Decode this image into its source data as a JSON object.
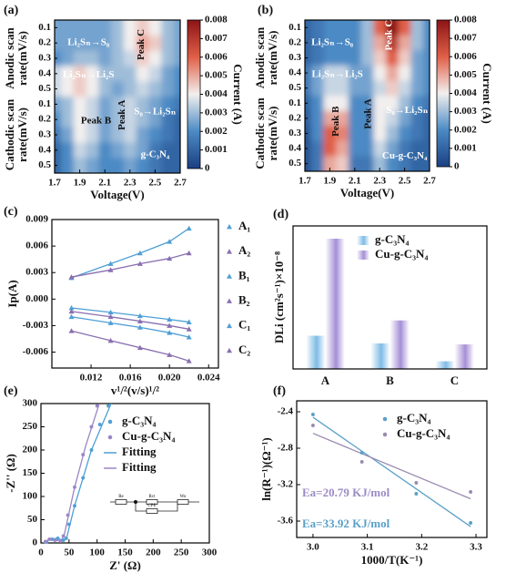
{
  "chart_data": [
    {
      "type": "heatmap",
      "label": "(a)",
      "xlabel": "Voltage(V)",
      "ylabel_top": [
        "Anodic scan",
        "rate(mV/s)"
      ],
      "ylabel_bottom": [
        "Cathodic scan",
        "rate(mV/s)"
      ],
      "colorbar_label": "Current (A)",
      "x": [
        1.7,
        1.8,
        1.9,
        2.0,
        2.1,
        2.2,
        2.3,
        2.4,
        2.5,
        2.6,
        2.7
      ],
      "xlim": [
        1.7,
        2.7
      ],
      "xticks": [
        1.7,
        1.9,
        2.1,
        2.3,
        2.5,
        2.7
      ],
      "categories": [
        "0.1",
        "0.2",
        "0.3",
        "0.4",
        "0.5",
        "0.1",
        "0.2",
        "0.3",
        "0.4",
        "0.5"
      ],
      "z": [
        [
          0.0025,
          0.0025,
          0.0025,
          0.0025,
          0.0025,
          0.003,
          0.004,
          0.0045,
          0.004,
          0.003,
          0.0025
        ],
        [
          0.0025,
          0.0025,
          0.0025,
          0.0025,
          0.0025,
          0.003,
          0.004,
          0.005,
          0.0045,
          0.003,
          0.0025
        ],
        [
          0.002,
          0.0025,
          0.003,
          0.003,
          0.0025,
          0.003,
          0.0035,
          0.0045,
          0.004,
          0.003,
          0.0025
        ],
        [
          0.0035,
          0.004,
          0.0045,
          0.004,
          0.003,
          0.003,
          0.003,
          0.004,
          0.0035,
          0.0025,
          0.002
        ],
        [
          0.0035,
          0.004,
          0.0045,
          0.004,
          0.003,
          0.0025,
          0.003,
          0.0035,
          0.003,
          0.0025,
          0.002
        ],
        [
          0.0025,
          0.003,
          0.004,
          0.0035,
          0.0025,
          0.003,
          0.0035,
          0.003,
          0.0025,
          0.002,
          0.0015
        ],
        [
          0.002,
          0.003,
          0.004,
          0.0035,
          0.0025,
          0.003,
          0.0035,
          0.003,
          0.0025,
          0.0015,
          0.001
        ],
        [
          0.0015,
          0.0025,
          0.004,
          0.0035,
          0.0025,
          0.003,
          0.0035,
          0.0025,
          0.002,
          0.0015,
          0.001
        ],
        [
          0.001,
          0.002,
          0.0035,
          0.003,
          0.002,
          0.0025,
          0.003,
          0.0025,
          0.0015,
          0.001,
          0.001
        ],
        [
          0.001,
          0.002,
          0.003,
          0.0025,
          0.002,
          0.002,
          0.0025,
          0.002,
          0.0015,
          0.001,
          0.001
        ]
      ],
      "clim": [
        0,
        0.008
      ],
      "cticks": [
        0,
        0.001,
        0.002,
        0.003,
        0.004,
        0.005,
        0.006,
        0.007,
        0.008
      ],
      "colorscale": [
        "#1b3f82",
        "#4b8ac4",
        "#f2efee",
        "#e05f47",
        "#8c1416"
      ],
      "annotations": [
        "Li₂Sₙ→S₈",
        "Li₂Sₙ→Li₂S",
        "Peak C",
        "Peak B",
        "Peak A",
        "S₈→Li₂Sₙ",
        "g-C₃N₄"
      ]
    },
    {
      "type": "heatmap",
      "label": "(b)",
      "xlabel": "Voltage(V)",
      "ylabel_top": [
        "Anodic scan",
        "rate(mV/s)"
      ],
      "ylabel_bottom": [
        "Cathodic scan",
        "rate(mV/s)"
      ],
      "colorbar_label": "Current (A)",
      "x": [
        1.7,
        1.8,
        1.9,
        2.0,
        2.1,
        2.2,
        2.3,
        2.4,
        2.5,
        2.6,
        2.7
      ],
      "xlim": [
        1.7,
        2.7
      ],
      "xticks": [
        1.7,
        1.9,
        2.1,
        2.3,
        2.5,
        2.7
      ],
      "categories": [
        "0.1",
        "0.2",
        "0.3",
        "0.4",
        "0.5",
        "0.1",
        "0.2",
        "0.3",
        "0.4",
        "0.5"
      ],
      "z": [
        [
          0.001,
          0.0015,
          0.002,
          0.002,
          0.002,
          0.003,
          0.006,
          0.008,
          0.006,
          0.003,
          0.002
        ],
        [
          0.001,
          0.0015,
          0.002,
          0.002,
          0.002,
          0.003,
          0.005,
          0.007,
          0.005,
          0.003,
          0.002
        ],
        [
          0.001,
          0.0015,
          0.002,
          0.002,
          0.002,
          0.003,
          0.0045,
          0.006,
          0.0045,
          0.0025,
          0.002
        ],
        [
          0.0015,
          0.0025,
          0.0035,
          0.0035,
          0.0025,
          0.0025,
          0.004,
          0.005,
          0.004,
          0.0025,
          0.002
        ],
        [
          0.0015,
          0.0025,
          0.0035,
          0.0035,
          0.0025,
          0.0025,
          0.0035,
          0.0045,
          0.0035,
          0.0025,
          0.002
        ],
        [
          0.001,
          0.002,
          0.004,
          0.004,
          0.002,
          0.002,
          0.004,
          0.004,
          0.003,
          0.002,
          0.0015
        ],
        [
          0.0008,
          0.002,
          0.005,
          0.005,
          0.002,
          0.002,
          0.004,
          0.0035,
          0.0025,
          0.0015,
          0.001
        ],
        [
          0.0005,
          0.002,
          0.006,
          0.0055,
          0.002,
          0.002,
          0.004,
          0.003,
          0.002,
          0.0015,
          0.001
        ],
        [
          0.0005,
          0.0015,
          0.006,
          0.005,
          0.002,
          0.002,
          0.0035,
          0.0025,
          0.0015,
          0.001,
          0.001
        ],
        [
          0.0005,
          0.0015,
          0.005,
          0.0045,
          0.0015,
          0.0015,
          0.003,
          0.002,
          0.0015,
          0.001,
          0.001
        ]
      ],
      "clim": [
        0,
        0.008
      ],
      "cticks": [
        0,
        0.001,
        0.002,
        0.003,
        0.004,
        0.005,
        0.006,
        0.007,
        0.008
      ],
      "colorscale": [
        "#1b3f82",
        "#4b8ac4",
        "#f2efee",
        "#e05f47",
        "#8c1416"
      ],
      "annotations": [
        "Li₂Sₙ→S₈",
        "Li₂Sₙ→Li₂S",
        "Peak C",
        "Peak B",
        "Peak A",
        "S₈→Li₂Sₙ",
        "Cu-g-C₃N₄"
      ]
    },
    {
      "type": "line",
      "label": "(c)",
      "xlabel": "v¹/²(v/s)¹/²",
      "ylabel": "Ip(A)",
      "x": [
        0.01,
        0.014,
        0.017,
        0.02,
        0.022
      ],
      "xlim": [
        0.008,
        0.025
      ],
      "xticks": [
        0.012,
        0.016,
        {
          "value": 0.02,
          "label": "0.020"
        },
        0.024
      ],
      "ylim": [
        -0.0078,
        0.009
      ],
      "yticks": [
        -0.006,
        -0.003,
        {
          "value": 0,
          "label": "0.000"
        },
        0.003,
        0.006,
        0.009
      ],
      "legend": "right",
      "series": [
        {
          "name": "A₁",
          "color": "#4f9fd6",
          "values": [
            0.0024,
            0.004,
            0.0052,
            0.0065,
            0.008
          ]
        },
        {
          "name": "A₂",
          "color": "#8a6fb0",
          "values": [
            0.0025,
            0.0033,
            0.004,
            0.0046,
            0.0052
          ]
        },
        {
          "name": "B₁",
          "color": "#4f9fd6",
          "values": [
            -0.001,
            -0.0015,
            -0.0019,
            -0.0023,
            -0.0026
          ]
        },
        {
          "name": "B₂",
          "color": "#8a6fb0",
          "values": [
            -0.0014,
            -0.002,
            -0.0025,
            -0.003,
            -0.0034
          ]
        },
        {
          "name": "C₁",
          "color": "#4f9fd6",
          "values": [
            -0.002,
            -0.0027,
            -0.0032,
            -0.0038,
            -0.0043
          ]
        },
        {
          "name": "C₂",
          "color": "#8a6fb0",
          "values": [
            -0.0036,
            -0.0047,
            -0.0055,
            -0.0063,
            -0.007
          ]
        }
      ]
    },
    {
      "type": "bar",
      "label": "(d)",
      "ylabel": "DLi (cm²s⁻¹)×10⁻⁸",
      "categories": [
        "A",
        "B",
        "C"
      ],
      "ylim": [
        0,
        28
      ],
      "legend": "upper center",
      "series": [
        {
          "name": "g-C₃N₄",
          "color": "#7fbbe6",
          "values": [
            6.5,
            5.0,
            1.5
          ]
        },
        {
          "name": "Cu-g-C₃N₄",
          "color": "#a58fd6",
          "values": [
            25.5,
            9.5,
            4.8
          ]
        }
      ]
    },
    {
      "type": "scatter",
      "label": "(e)",
      "xlabel": "Z' (Ω)",
      "ylabel": "-Z'' (Ω)",
      "xlim": [
        0,
        300
      ],
      "xticks": [
        0,
        50,
        100,
        150,
        200,
        250,
        300
      ],
      "ylim": [
        0,
        300
      ],
      "yticks": [
        0,
        50,
        100,
        150,
        200,
        250,
        300
      ],
      "legend": "upper right",
      "series": [
        {
          "name": "g-C₃N₄",
          "color": "#4f9fd6",
          "mode": "markers",
          "x": [
            10,
            20,
            30,
            40,
            45,
            50,
            60,
            75,
            90,
            105,
            120
          ],
          "values": [
            2,
            8,
            10,
            6,
            10,
            40,
            80,
            140,
            200,
            255,
            295
          ]
        },
        {
          "name": "Cu-g-C₃N₄",
          "color": "#9a86c6",
          "mode": "markers",
          "x": [
            8,
            15,
            25,
            35,
            40,
            48,
            60,
            75,
            90,
            100
          ],
          "values": [
            3,
            8,
            6,
            4,
            15,
            60,
            120,
            190,
            250,
            295
          ]
        },
        {
          "name": "Fitting",
          "color": "#4f9fd6",
          "mode": "lines",
          "x": [
            5,
            15,
            28,
            40,
            46,
            60,
            90,
            125
          ],
          "values": [
            0,
            7,
            10,
            6,
            12,
            80,
            200,
            300
          ]
        },
        {
          "name": "Fitting",
          "color": "#9a86c6",
          "mode": "lines",
          "x": [
            4,
            14,
            25,
            36,
            42,
            60,
            80,
            104
          ],
          "values": [
            0,
            7,
            6,
            4,
            20,
            120,
            210,
            300
          ]
        }
      ],
      "circuit_labels": [
        "Re",
        "Rct",
        "Wo",
        "CPE"
      ]
    },
    {
      "type": "scatter",
      "label": "(f)",
      "xlabel": "1000/T(K⁻¹)",
      "ylabel": "ln(R⁻¹)(Ω⁻¹)",
      "xlim": [
        2.97,
        3.32
      ],
      "xticks": [
        {
          "value": 3,
          "label": "3.0"
        },
        3.1,
        3.2,
        3.3
      ],
      "ylim": [
        -3.78,
        -2.28
      ],
      "yticks": [
        -2.4,
        -2.8,
        -3.2,
        -3.6
      ],
      "legend": "upper right",
      "fit": true,
      "series": [
        {
          "name": "g-C₃N₄",
          "color": "#5aa0c8",
          "mode": "markers",
          "x": [
            3.0,
            3.09,
            3.19,
            3.29
          ],
          "values": [
            -2.43,
            -2.85,
            -3.3,
            -3.62
          ]
        },
        {
          "name": "Cu-g-C₃N₄",
          "color": "#9b8bb0",
          "mode": "markers",
          "x": [
            3.0,
            3.09,
            3.19,
            3.29
          ],
          "values": [
            -2.55,
            -2.95,
            -3.18,
            -3.28
          ]
        }
      ],
      "annotations": [
        {
          "text": "Ea=20.79 KJ/mol",
          "color": "#9b8bc4"
        },
        {
          "text": "Ea=33.92 KJ/mol",
          "color": "#5aa0c8"
        }
      ]
    }
  ]
}
